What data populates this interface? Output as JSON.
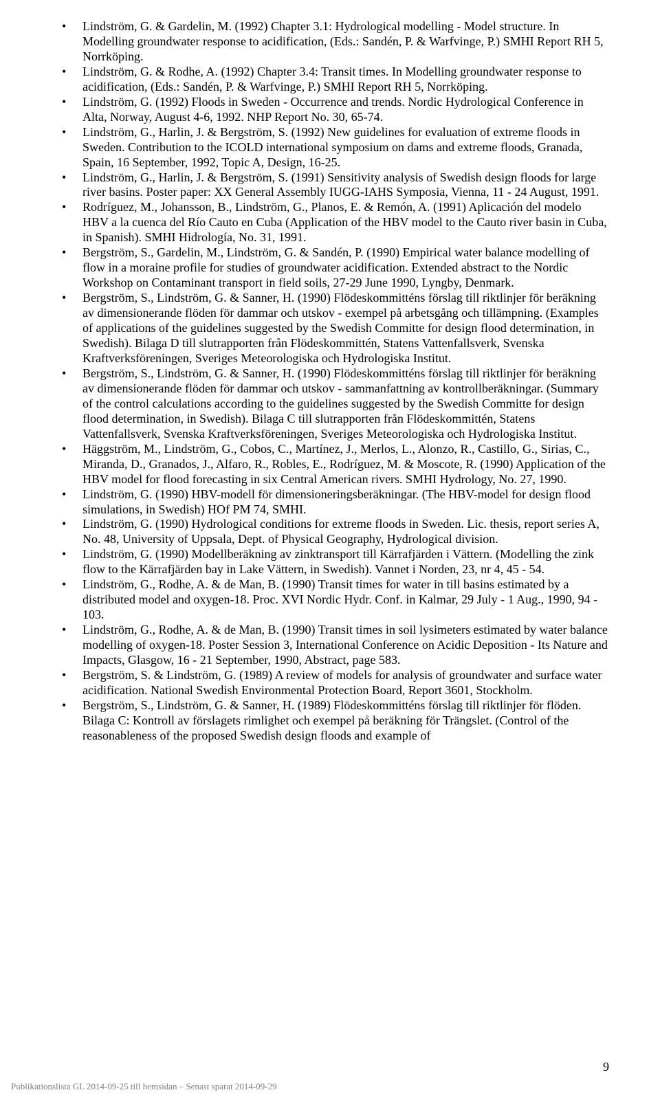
{
  "publications": [
    "Lindström, G. & Gardelin, M. (1992) Chapter 3.1: Hydrological modelling - Model structure. In Modelling groundwater response to acidification, (Eds.: Sandén, P. & Warfvinge, P.) SMHI Report RH 5, Norrköping.",
    "Lindström, G. & Rodhe, A. (1992) Chapter 3.4: Transit times. In Modelling groundwater response to acidification, (Eds.: Sandén, P. & Warfvinge, P.) SMHI Report RH 5, Norrköping.",
    "Lindström, G. (1992) Floods in Sweden - Occurrence and trends. Nordic Hydrological Conference in Alta, Norway, August 4-6, 1992. NHP Report No. 30, 65-74.",
    "Lindström, G., Harlin, J. & Bergström, S. (1992) New guidelines for evaluation of extreme floods in Sweden. Contribution to the ICOLD international symposium on dams and extreme floods, Granada, Spain, 16 September, 1992, Topic A, Design, 16-25.",
    "Lindström, G., Harlin, J. & Bergström, S. (1991) Sensitivity analysis of Swedish design floods for large river basins. Poster paper: XX General Assembly IUGG-IAHS Symposia, Vienna, 11 - 24 August, 1991.",
    "Rodríguez, M., Johansson, B., Lindström, G., Planos, E. & Remón, A. (1991) Aplicación del modelo HBV a la cuenca del Río Cauto en Cuba (Application of the HBV model to the Cauto river basin in Cuba, in Spanish). SMHI Hidrología, No. 31, 1991.",
    "Bergström, S., Gardelin, M., Lindström, G. & Sandén, P. (1990) Empirical water balance modelling of flow in a moraine profile for studies of groundwater acidification. Extended abstract to the Nordic Workshop on Contaminant transport in field soils, 27-29 June 1990, Lyngby, Denmark.",
    "Bergström, S., Lindström, G. & Sanner, H. (1990) Flödeskommitténs förslag till riktlinjer för beräkning av dimensionerande flöden för dammar och utskov - exempel på arbetsgång och tillämpning. (Examples of applications of the guidelines suggested by the Swedish Committe for design flood determination, in Swedish). Bilaga D till slutrapporten från Flödeskommittén, Statens Vattenfallsverk, Svenska Kraftverksföreningen, Sveriges Meteorologiska och Hydrologiska Institut.",
    "Bergström, S., Lindström, G. & Sanner, H. (1990) Flödeskommitténs förslag till riktlinjer för beräkning av dimensionerande flöden för dammar och utskov - sammanfattning av kontrollberäkningar. (Summary of the control calculations according to the guidelines suggested by the Swedish Committe for design flood determination, in Swedish). Bilaga C till slutrapporten från Flödeskommittén, Statens Vattenfallsverk, Svenska Kraftverksföreningen, Sveriges Meteorologiska och Hydrologiska Institut.",
    "Häggström, M., Lindström, G., Cobos, C., Martínez, J., Merlos, L., Alonzo, R., Castillo, G., Sirias, C., Miranda, D., Granados, J., Alfaro, R., Robles, E., Rodríguez, M. & Moscote, R. (1990) Application of the HBV model for flood forecasting in six Central American rivers. SMHI Hydrology, No. 27, 1990.",
    "Lindström, G. (1990) HBV-modell för dimensioneringsberäkningar. (The HBV-model for design flood simulations, in Swedish) HOf PM 74, SMHI.",
    "Lindström, G. (1990) Hydrological conditions for extreme floods in Sweden. Lic. thesis, report series A, No. 48, University of Uppsala, Dept. of Physical Geography, Hydrological division.",
    "Lindström, G. (1990) Modellberäkning av zinktransport till Kärrafjärden i Vättern. (Modelling the zink flow to the Kärrafjärden bay in Lake Vättern, in Swedish). Vannet i Norden, 23, nr 4, 45 - 54.",
    "Lindström, G., Rodhe, A. & de Man, B. (1990) Transit times for water in till basins estimated by a distributed model and oxygen-18. Proc. XVI Nordic Hydr. Conf. in Kalmar, 29 July - 1 Aug., 1990, 94 - 103.",
    "Lindström, G., Rodhe, A. & de Man, B. (1990) Transit times in soil lysimeters estimated by water balance modelling of oxygen-18. Poster Session 3, International Conference on Acidic Deposition - Its Nature and Impacts, Glasgow, 16 - 21 September, 1990, Abstract, page 583.",
    "Bergström, S. & Lindström, G. (1989) A review of models for analysis of groundwater and surface water acidification. National Swedish Environmental Protection Board, Report 3601, Stockholm.",
    "Bergström, S., Lindström, G. & Sanner, H. (1989) Flödeskommitténs förslag till riktlinjer för flöden. Bilaga C: Kontroll av förslagets rimlighet och exempel på beräkning för Trängslet. (Control of the reasonableness of the proposed Swedish design floods and example of"
  ],
  "footer_text": "Publikationslista GL 2014-09-25 till hemsidan – Senast sparat 2014-09-29",
  "page_number": "9"
}
